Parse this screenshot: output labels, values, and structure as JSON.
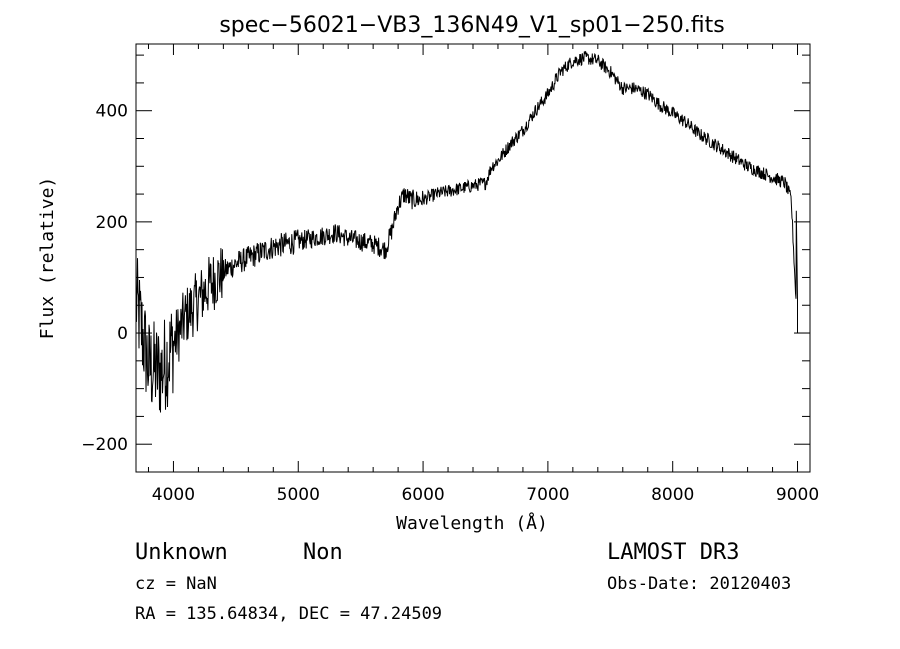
{
  "chart_data": {
    "type": "line",
    "title": "spec−56021−VB3_136N49_V1_sp01−250.fits",
    "xlabel": "Wavelength (Å)",
    "ylabel": "Flux (relative)",
    "xlim": [
      3700,
      9100
    ],
    "ylim": [
      -250,
      520
    ],
    "x_ticks": [
      4000,
      5000,
      6000,
      7000,
      8000,
      9000
    ],
    "x_tick_labels": [
      "4000",
      "5000",
      "6000",
      "7000",
      "8000",
      "9000"
    ],
    "y_ticks": [
      -200,
      0,
      200,
      400
    ],
    "y_tick_labels": [
      "−200",
      "0",
      "200",
      "400"
    ],
    "grid": false,
    "series": [
      {
        "name": "flux",
        "color": "#000000",
        "x": [
          3700,
          3800,
          3900,
          4000,
          4100,
          4200,
          4300,
          4400,
          4500,
          4600,
          4700,
          4800,
          4900,
          5000,
          5100,
          5200,
          5300,
          5400,
          5500,
          5600,
          5700,
          5750,
          5800,
          5850,
          5900,
          6000,
          6100,
          6200,
          6300,
          6400,
          6500,
          6550,
          6600,
          6700,
          6800,
          6900,
          7000,
          7100,
          7200,
          7300,
          7400,
          7500,
          7600,
          7700,
          7800,
          7900,
          8000,
          8100,
          8200,
          8300,
          8400,
          8500,
          8600,
          8700,
          8800,
          8900,
          8950,
          9000
        ],
        "y": [
          60,
          -60,
          -70,
          -20,
          30,
          60,
          90,
          110,
          125,
          135,
          145,
          155,
          160,
          165,
          170,
          175,
          180,
          170,
          165,
          160,
          150,
          185,
          230,
          250,
          240,
          240,
          250,
          255,
          260,
          265,
          270,
          300,
          310,
          340,
          365,
          400,
          430,
          470,
          490,
          495,
          490,
          470,
          440,
          440,
          430,
          410,
          395,
          380,
          360,
          345,
          330,
          315,
          300,
          290,
          280,
          270,
          240,
          0
        ]
      }
    ]
  },
  "footer": {
    "object_class": "Unknown",
    "subclass": "Non",
    "cz": "cz = NaN",
    "coords": "RA = 135.64834, DEC =  47.24509",
    "survey": "LAMOST DR3",
    "obs_date": "Obs-Date: 20120403"
  }
}
